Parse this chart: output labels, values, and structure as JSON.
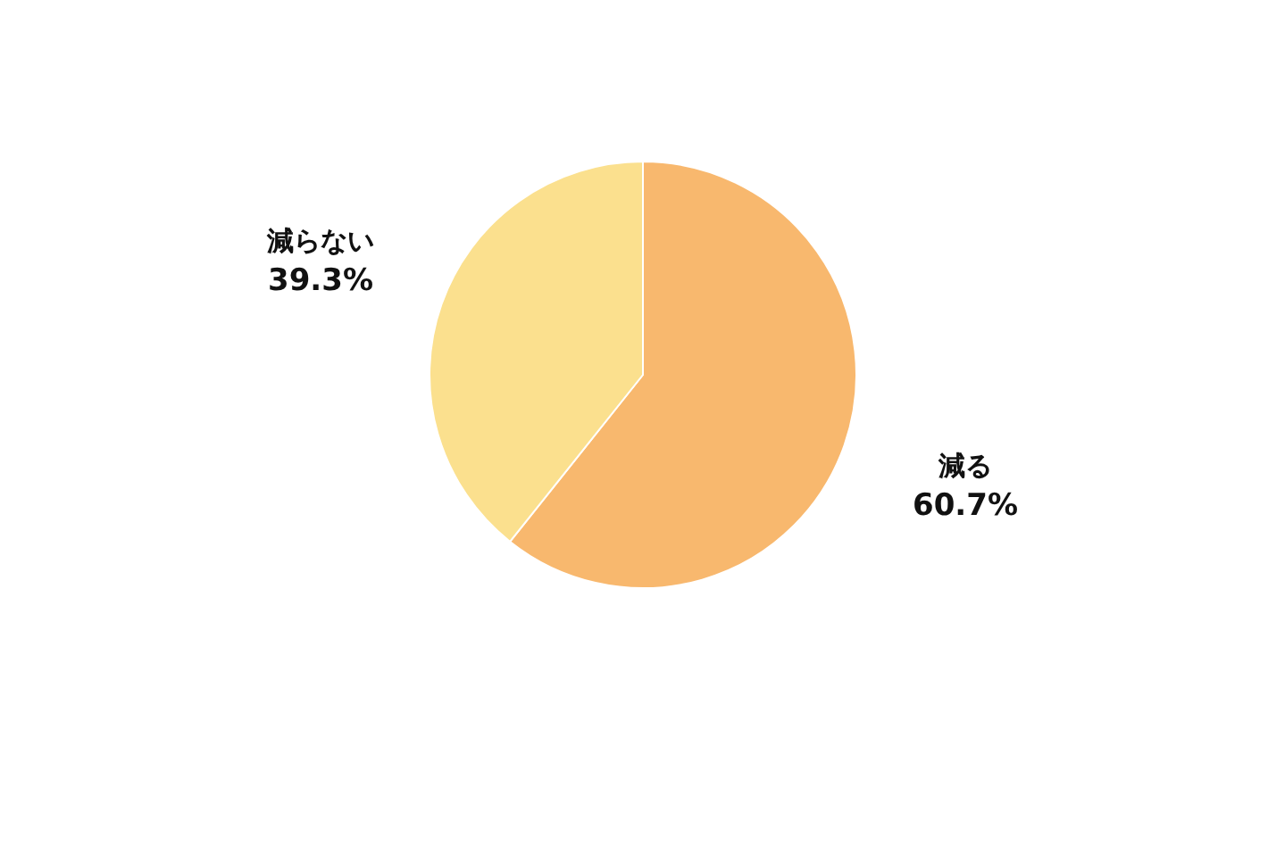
{
  "chart_data": {
    "type": "pie",
    "categories": [
      "減る",
      "減らない"
    ],
    "values": [
      60.7,
      39.3
    ],
    "colors": [
      "#f8b86e",
      "#fbe08e"
    ],
    "value_labels": [
      "60.7%",
      "39.3%"
    ],
    "legend": false
  }
}
